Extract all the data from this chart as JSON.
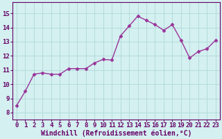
{
  "x": [
    0,
    1,
    2,
    3,
    4,
    5,
    6,
    7,
    8,
    9,
    10,
    11,
    12,
    13,
    14,
    15,
    16,
    17,
    18,
    19,
    20,
    21,
    22,
    23
  ],
  "y": [
    8.5,
    9.5,
    10.7,
    10.8,
    10.7,
    10.7,
    11.1,
    11.1,
    11.1,
    11.5,
    11.75,
    11.7,
    13.4,
    14.1,
    14.8,
    14.5,
    14.2,
    13.8,
    14.2,
    13.1,
    11.85,
    12.3,
    12.5,
    13.1
  ],
  "line_color": "#993399",
  "marker": "D",
  "marker_size": 2.5,
  "bg_color": "#d4f0f0",
  "grid_color": "#b0d8d8",
  "xlabel": "Windchill (Refroidissement éolien,°C)",
  "xlabel_fontsize": 7,
  "xlabel_color": "#660066",
  "xlabel_bold": true,
  "xtick_labels": [
    "0",
    "1",
    "2",
    "3",
    "4",
    "5",
    "6",
    "7",
    "8",
    "9",
    "10",
    "11",
    "12",
    "13",
    "14",
    "15",
    "16",
    "17",
    "18",
    "19",
    "20",
    "21",
    "22",
    "23"
  ],
  "ytick_min": 8,
  "ytick_max": 15,
  "ytick_step": 1,
  "ylim": [
    7.5,
    15.8
  ],
  "xlim": [
    -0.5,
    23.5
  ],
  "tick_fontsize": 6.5,
  "tick_color": "#660066",
  "linewidth": 1.0,
  "spine_color": "#660066"
}
